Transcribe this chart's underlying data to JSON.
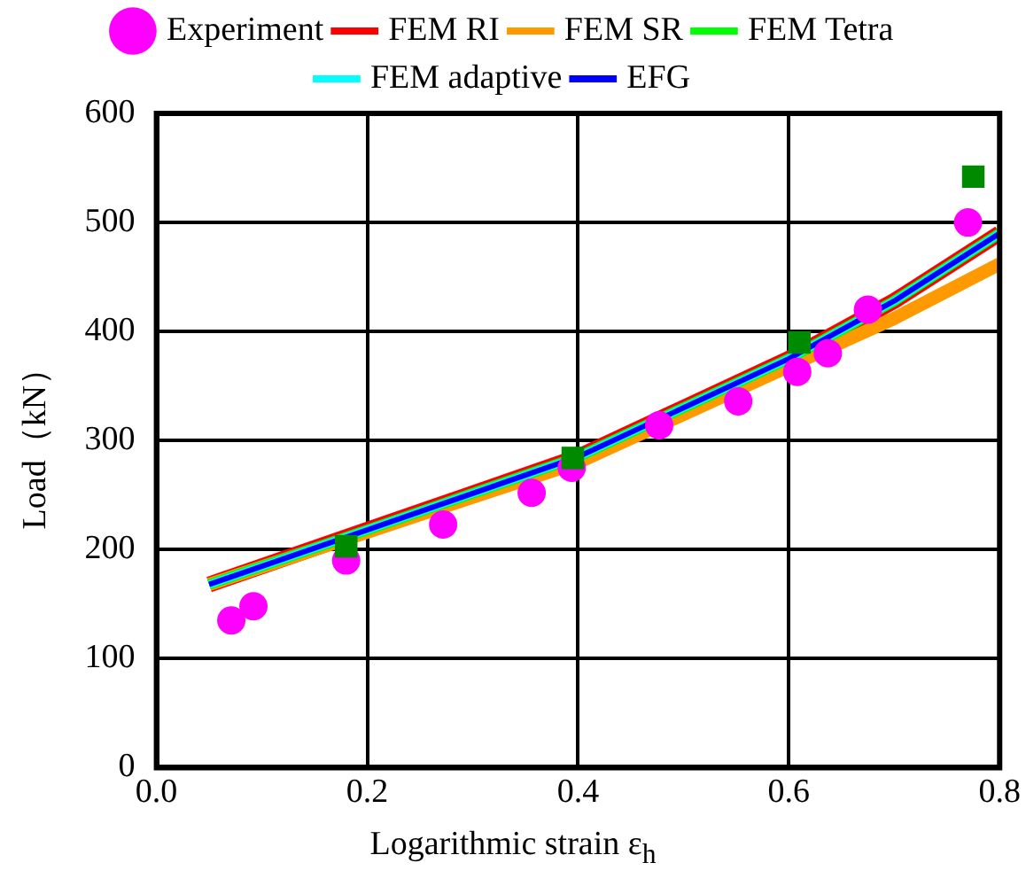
{
  "chart_data": {
    "type": "line",
    "xlabel": "Logarithmic strain ε$_{h}$",
    "ylabel": "Load（kN）",
    "xlim": [
      0,
      0.8
    ],
    "xticks": [
      {
        "value": 0,
        "label": "0.0"
      },
      0.2,
      0.4,
      0.6,
      0.8
    ],
    "ylim": [
      0,
      600
    ],
    "yticks": [
      0,
      100,
      200,
      300,
      400,
      500,
      600
    ],
    "grid": true,
    "legend": "top",
    "line_style": "solid",
    "series": [
      {
        "name": "Experiment",
        "type": "scatter",
        "marker": "circle",
        "color": "#ff00ff",
        "x": [
          0.071,
          0.092,
          0.18,
          0.272,
          0.356,
          0.394,
          0.477,
          0.552,
          0.608,
          0.637,
          0.675,
          0.77
        ],
        "values": [
          135,
          148,
          190,
          223,
          252,
          275,
          314,
          336,
          363,
          380,
          420,
          500
        ]
      },
      {
        "type": "scatter",
        "marker": "square",
        "color": "#008a00",
        "x": [
          0.18,
          0.395,
          0.61,
          0.775
        ],
        "values": [
          203,
          284,
          390,
          542
        ]
      },
      {
        "name": "FEM RI",
        "color": "#ff0000",
        "x": [
          0.05,
          0.2,
          0.4,
          0.6,
          0.7,
          0.8
        ],
        "values": [
          168,
          218,
          285,
          375,
          428,
          490
        ]
      },
      {
        "name": "FEM SR",
        "color": "#ff9900",
        "x": [
          0.05,
          0.2,
          0.4,
          0.6,
          0.7,
          0.8
        ],
        "values": [
          168,
          216,
          280,
          368,
          412,
          462
        ]
      },
      {
        "name": "FEM Tetra",
        "color": "#00ff00",
        "x": [
          0.05,
          0.2,
          0.4,
          0.6,
          0.7,
          0.8
        ],
        "values": [
          168,
          218,
          285,
          375,
          428,
          490
        ]
      },
      {
        "name": "FEM adaptive",
        "color": "#00ffff",
        "x": [
          0.05,
          0.2,
          0.4,
          0.6,
          0.7,
          0.8
        ],
        "values": [
          168,
          218,
          285,
          375,
          428,
          490
        ]
      },
      {
        "name": "EFG",
        "color": "#0000ff",
        "x": [
          0.05,
          0.2,
          0.4,
          0.6,
          0.7,
          0.8
        ],
        "values": [
          168,
          218,
          285,
          375,
          428,
          490
        ]
      }
    ]
  }
}
